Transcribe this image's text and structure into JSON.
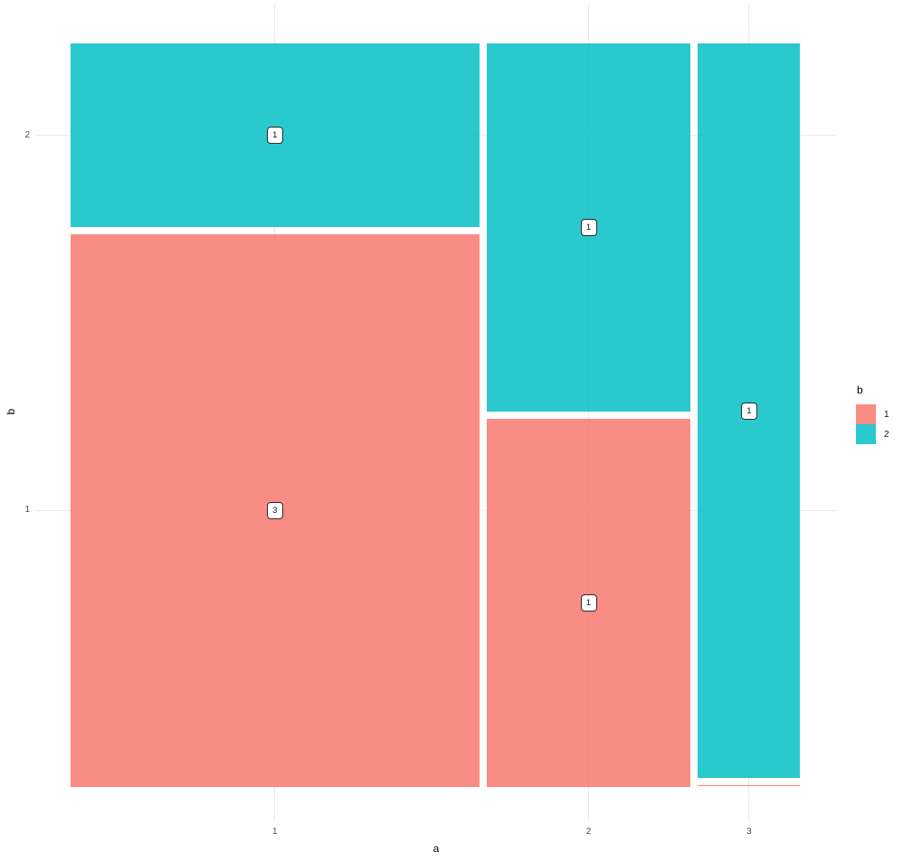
{
  "figure": {
    "background": "#ffffff",
    "gridline_color": "#eaeaea",
    "tick_label_color": "#4d4d4d"
  },
  "chart_data": {
    "type": "mosaic",
    "title": "",
    "xlabel": "a",
    "ylabel": "b",
    "x_ticks": [
      "1",
      "2",
      "3"
    ],
    "y_ticks": [
      "1",
      "2"
    ],
    "grid": "major-only, light gray, drawn under semi-transparent cells",
    "legend": {
      "title": "b",
      "position": "right",
      "entries": [
        {
          "label": "1",
          "color": "rgba(248,118,109,0.84)"
        },
        {
          "label": "2",
          "color": "rgba(0,191,196,0.84)"
        }
      ]
    },
    "cells": [
      {
        "a": "1",
        "b": "1",
        "count": 3,
        "label": "3"
      },
      {
        "a": "1",
        "b": "2",
        "count": 1,
        "label": "1"
      },
      {
        "a": "2",
        "b": "1",
        "count": 1,
        "label": "1"
      },
      {
        "a": "2",
        "b": "2",
        "count": 1,
        "label": "1"
      },
      {
        "a": "3",
        "b": "1",
        "count": 0,
        "label": null
      },
      {
        "a": "3",
        "b": "2",
        "count": 1,
        "label": "1"
      }
    ],
    "column_totals": {
      "1": 4,
      "2": 2,
      "3": 1
    },
    "notes": "Mosaic plot: column widths proportional to counts of a (4:2:1); within each column, heights proportional to counts of b. a=3,b=1 has count 0 and renders as a thin sliver."
  }
}
